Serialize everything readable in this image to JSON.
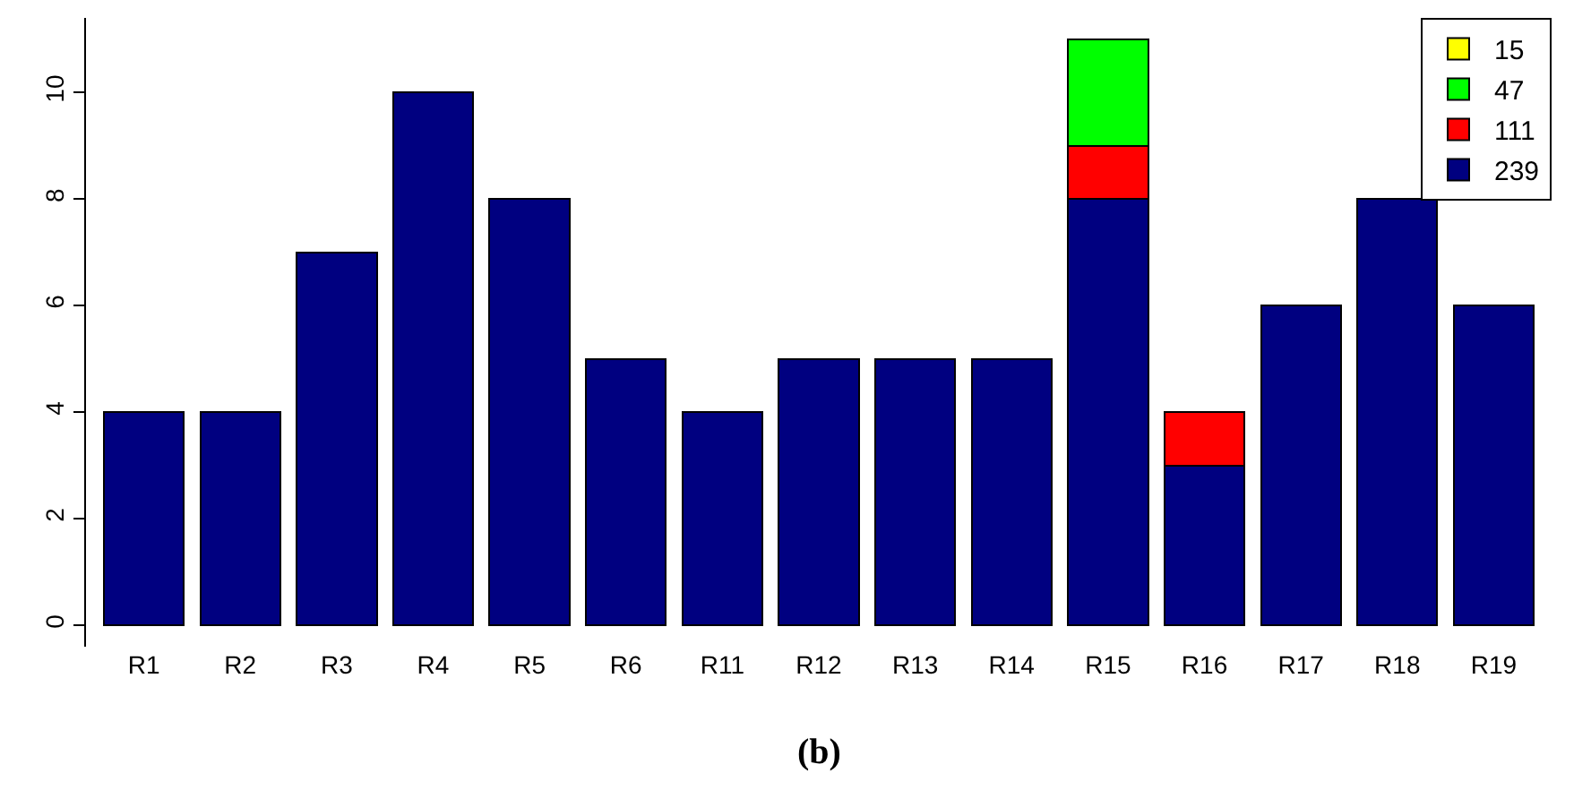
{
  "chart_data": {
    "type": "bar",
    "stacked": true,
    "categories": [
      "R1",
      "R2",
      "R3",
      "R4",
      "R5",
      "R6",
      "R11",
      "R12",
      "R13",
      "R14",
      "R15",
      "R16",
      "R17",
      "R18",
      "R19"
    ],
    "series": [
      {
        "name": "239",
        "color": "#000080",
        "values": [
          4,
          4,
          7,
          10,
          8,
          5,
          4,
          5,
          5,
          5,
          8,
          3,
          6,
          8,
          6
        ]
      },
      {
        "name": "111",
        "color": "#ff0000",
        "values": [
          null,
          null,
          null,
          null,
          null,
          null,
          null,
          null,
          null,
          null,
          1,
          1,
          null,
          null,
          null
        ]
      },
      {
        "name": "47",
        "color": "#00ff00",
        "values": [
          null,
          null,
          null,
          null,
          null,
          null,
          null,
          null,
          null,
          null,
          2,
          null,
          null,
          null,
          null
        ]
      },
      {
        "name": "15",
        "color": "#ffff00",
        "values": [
          null,
          null,
          null,
          null,
          null,
          null,
          null,
          null,
          null,
          null,
          null,
          null,
          null,
          null,
          null
        ]
      }
    ],
    "ylim": [
      -0.4,
      11.4
    ],
    "yticks": [
      0,
      2,
      4,
      6,
      8,
      10
    ],
    "grid": false,
    "legend": "top right",
    "annotations": [
      "(b)"
    ]
  }
}
